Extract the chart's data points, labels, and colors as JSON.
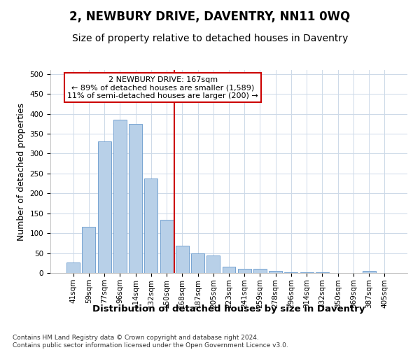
{
  "title": "2, NEWBURY DRIVE, DAVENTRY, NN11 0WQ",
  "subtitle": "Size of property relative to detached houses in Daventry",
  "xlabel": "Distribution of detached houses by size in Daventry",
  "ylabel": "Number of detached properties",
  "categories": [
    "41sqm",
    "59sqm",
    "77sqm",
    "96sqm",
    "114sqm",
    "132sqm",
    "150sqm",
    "168sqm",
    "187sqm",
    "205sqm",
    "223sqm",
    "241sqm",
    "259sqm",
    "278sqm",
    "296sqm",
    "314sqm",
    "332sqm",
    "350sqm",
    "369sqm",
    "387sqm",
    "405sqm"
  ],
  "values": [
    27,
    116,
    330,
    385,
    375,
    238,
    133,
    68,
    50,
    44,
    16,
    10,
    10,
    5,
    1,
    1,
    1,
    0,
    0,
    5,
    0
  ],
  "bar_color": "#b8d0e8",
  "bar_edge_color": "#6699cc",
  "vline_x_index": 7,
  "vline_color": "#cc0000",
  "annotation_text": "2 NEWBURY DRIVE: 167sqm\n← 89% of detached houses are smaller (1,589)\n11% of semi-detached houses are larger (200) →",
  "annotation_box_color": "#ffffff",
  "annotation_box_edge_color": "#cc0000",
  "ylim": [
    0,
    510
  ],
  "yticks": [
    0,
    50,
    100,
    150,
    200,
    250,
    300,
    350,
    400,
    450,
    500
  ],
  "footer": "Contains HM Land Registry data © Crown copyright and database right 2024.\nContains public sector information licensed under the Open Government Licence v3.0.",
  "bg_color": "#ffffff",
  "grid_color": "#ccd9e8",
  "title_fontsize": 12,
  "subtitle_fontsize": 10,
  "axis_label_fontsize": 9,
  "tick_fontsize": 7.5,
  "footer_fontsize": 6.5,
  "annotation_fontsize": 8
}
